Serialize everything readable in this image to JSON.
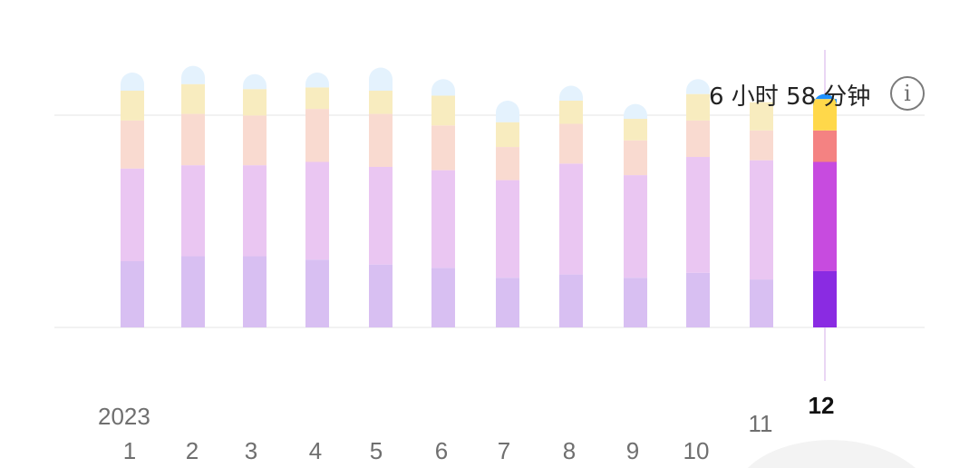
{
  "chart_data": {
    "type": "bar",
    "stacked": true,
    "year_label": "2023",
    "categories": [
      "1",
      "2",
      "3",
      "4",
      "5",
      "6",
      "7",
      "8",
      "9",
      "10",
      "11",
      "12"
    ],
    "selected_index": 11,
    "stack_colors_active": [
      "#8a2be2",
      "#c74bdf",
      "#f48282",
      "#ffd84a",
      "#1e90ff"
    ],
    "stack_colors_faded": [
      "#d8bff2",
      "#eac6f2",
      "#f9dad0",
      "#f8ecbf",
      "#e4f2fd"
    ],
    "series": [
      {
        "values": [
          2.0,
          2.15,
          2.15,
          2.05,
          1.9,
          1.8,
          1.5,
          1.6,
          1.5,
          1.65,
          1.45,
          1.7
        ]
      },
      {
        "values": [
          2.8,
          2.75,
          2.75,
          2.95,
          2.95,
          2.95,
          2.95,
          3.35,
          3.1,
          3.5,
          3.6,
          3.3
        ]
      },
      {
        "values": [
          1.45,
          1.55,
          1.5,
          1.6,
          1.6,
          1.35,
          1.0,
          1.2,
          1.05,
          1.1,
          0.9,
          0.95
        ]
      },
      {
        "values": [
          0.9,
          0.9,
          0.8,
          0.65,
          0.7,
          0.9,
          0.75,
          0.7,
          0.65,
          0.8,
          0.85,
          0.95
        ]
      },
      {
        "values": [
          0.55,
          0.55,
          0.45,
          0.45,
          0.7,
          0.5,
          0.65,
          0.45,
          0.45,
          0.45,
          0.0,
          0.15
        ]
      }
    ],
    "tooltip": {
      "text": "6 小时 58 分钟",
      "icon": "info-icon"
    },
    "grid": true
  }
}
